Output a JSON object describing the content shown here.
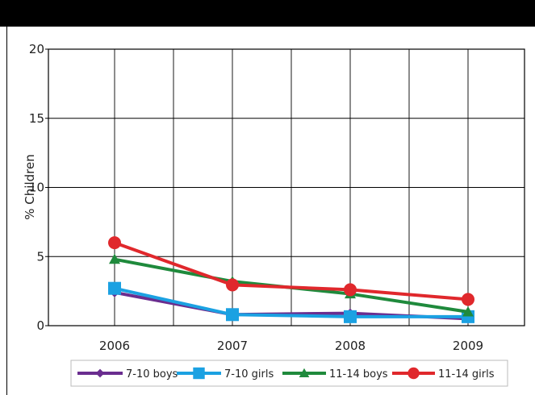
{
  "chart_data": {
    "type": "line",
    "xlabel": "",
    "ylabel": "% Children",
    "x": [
      "2006",
      "2007",
      "2008",
      "2009"
    ],
    "ylim": [
      0,
      20
    ],
    "yticks": [
      0,
      5,
      10,
      15,
      20
    ],
    "grid": true,
    "legend_position": "bottom",
    "series": [
      {
        "name": "7-10 boys",
        "values": [
          2.4,
          0.8,
          0.9,
          0.5
        ],
        "color": "#6a2d8f",
        "marker": "diamond"
      },
      {
        "name": "7-10 girls",
        "values": [
          2.7,
          0.8,
          0.65,
          0.65
        ],
        "color": "#1ba1e2",
        "marker": "square"
      },
      {
        "name": "11-14 boys",
        "values": [
          4.8,
          3.2,
          2.3,
          1.0
        ],
        "color": "#1f8a3c",
        "marker": "triangle"
      },
      {
        "name": "11-14 girls",
        "values": [
          6.0,
          2.95,
          2.6,
          1.9
        ],
        "color": "#e0282c",
        "marker": "circle"
      }
    ]
  }
}
